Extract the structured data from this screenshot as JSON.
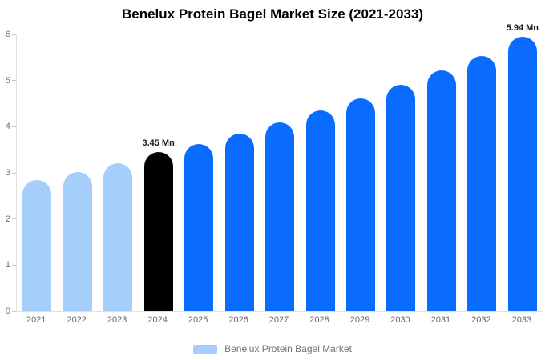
{
  "chart_data": {
    "type": "bar",
    "title": "Benelux Protein Bagel Market Size (2021-2033)",
    "series_name": "Benelux Protein Bagel Market",
    "categories": [
      "2021",
      "2022",
      "2023",
      "2024",
      "2025",
      "2026",
      "2027",
      "2028",
      "2029",
      "2030",
      "2031",
      "2032",
      "2033"
    ],
    "values": [
      2.85,
      3.02,
      3.21,
      3.45,
      3.62,
      3.85,
      4.1,
      4.36,
      4.62,
      4.91,
      5.22,
      5.54,
      5.94
    ],
    "point_colors": [
      "#A6CEFA",
      "#A6CEFA",
      "#A6CEFA",
      "#000000",
      "#0A6CFF",
      "#0A6CFF",
      "#0A6CFF",
      "#0A6CFF",
      "#0A6CFF",
      "#0A6CFF",
      "#0A6CFF",
      "#0A6CFF",
      "#0A6CFF"
    ],
    "point_labels": [
      null,
      null,
      null,
      "3.45 Mn",
      null,
      null,
      null,
      null,
      null,
      null,
      null,
      null,
      "5.94 Mn"
    ],
    "xlabel": "",
    "ylabel": "",
    "ylim": [
      0,
      6
    ],
    "yticks": [
      0,
      1,
      2,
      3,
      4,
      5,
      6
    ],
    "grid": false,
    "legend_position": "bottom"
  },
  "legend": {
    "label": "Benelux Protein Bagel Market",
    "swatch_color": "#A6CEFA"
  },
  "colors": {
    "light_blue": "#A6CEFA",
    "blue": "#0A6CFF",
    "black": "#000000",
    "axis_line": "#e0e0e0",
    "tick_text": "#757575",
    "data_label_text": "#1a1a1a"
  }
}
